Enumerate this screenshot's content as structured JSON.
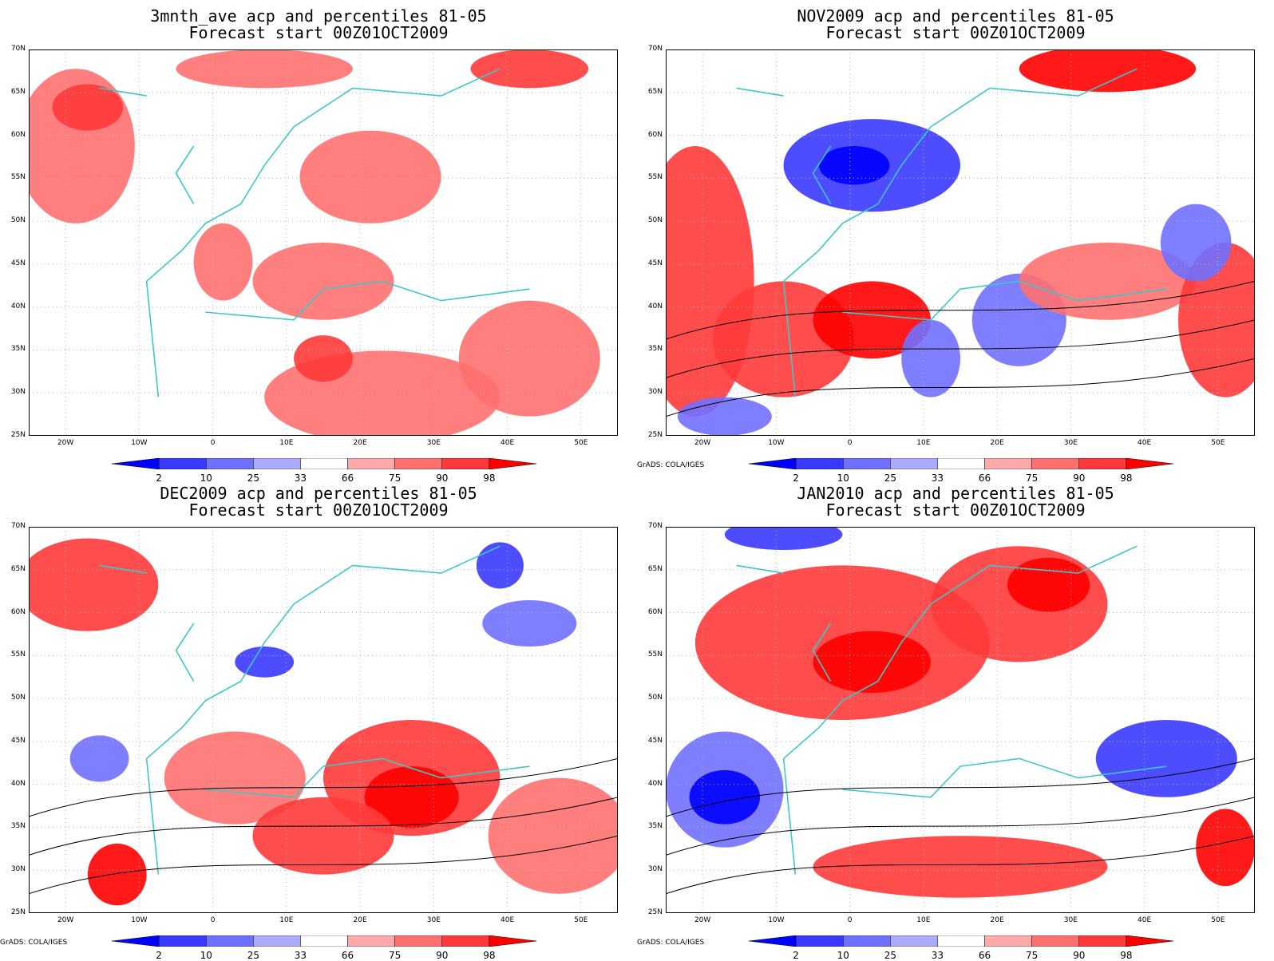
{
  "panels": [
    {
      "title1": "3mnth_ave acp and percentiles 81-05",
      "title2": "Forecast start 00Z01OCT2009",
      "credit": ""
    },
    {
      "title1": "NOV2009 acp and percentiles 81-05",
      "title2": "Forecast start 00Z01OCT2009",
      "credit": "GrADS: COLA/IGES"
    },
    {
      "title1": "DEC2009 acp and percentiles 81-05",
      "title2": "Forecast start 00Z01OCT2009",
      "credit": "GrADS: COLA/IGES"
    },
    {
      "title1": "JAN2010 acp and percentiles 81-05",
      "title2": "Forecast start 00Z01OCT2009",
      "credit": "GrADS: COLA/IGES"
    }
  ],
  "lat_labels": [
    "70N",
    "65N",
    "60N",
    "55N",
    "50N",
    "45N",
    "40N",
    "35N",
    "30N",
    "25N"
  ],
  "lon_labels": [
    "20W",
    "10W",
    "0",
    "10E",
    "20E",
    "30E",
    "40E",
    "50E"
  ],
  "colorbar": {
    "labels": [
      "2",
      "10",
      "25",
      "33",
      "66",
      "75",
      "90",
      "98"
    ],
    "colors": [
      "#0000ff",
      "#3a3aff",
      "#7070ff",
      "#aaaaff",
      "#ffffff",
      "#ffaaaa",
      "#ff7070",
      "#ff3a3a",
      "#ff0000"
    ]
  },
  "colors": {
    "coast": "#3cc8c8",
    "contour": "#000000",
    "grid": "#b4b4b4"
  }
}
